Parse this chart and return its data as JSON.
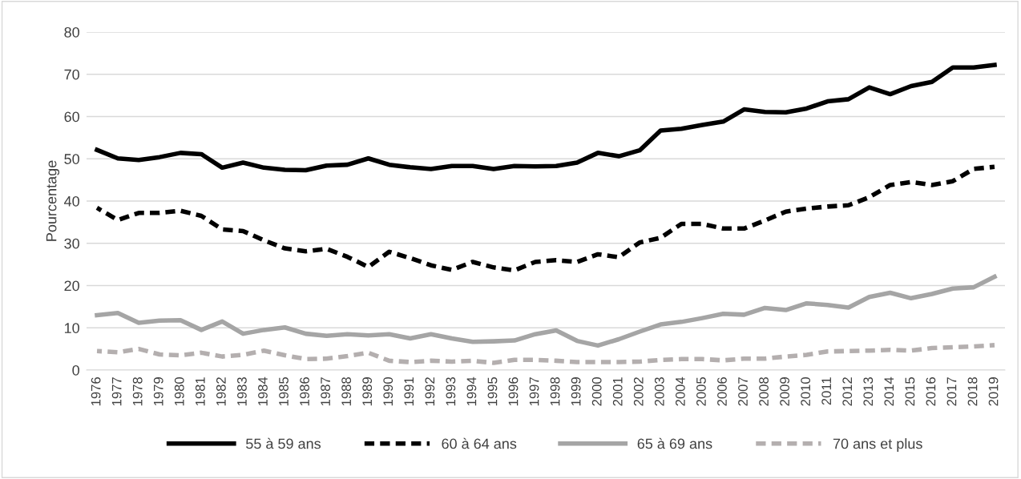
{
  "chart_data": {
    "type": "line",
    "ylabel": "Pourcentage",
    "categories": [
      "1976",
      "1977",
      "1978",
      "1979",
      "1980",
      "1981",
      "1982",
      "1983",
      "1984",
      "1985",
      "1986",
      "1987",
      "1988",
      "1989",
      "1990",
      "1991",
      "1992",
      "1993",
      "1994",
      "1995",
      "1996",
      "1997",
      "1998",
      "1999",
      "2000",
      "2001",
      "2002",
      "2003",
      "2004",
      "2005",
      "2006",
      "2007",
      "2008",
      "2009",
      "2010",
      "2011",
      "2012",
      "2013",
      "2014",
      "2015",
      "2016",
      "2017",
      "2018",
      "2019"
    ],
    "series": [
      {
        "name": "55 à 59 ans",
        "color": "#000000",
        "line_style": "solid",
        "values": [
          52.1,
          50.1,
          49.7,
          50.4,
          51.4,
          51.1,
          47.9,
          49.1,
          47.9,
          47.4,
          47.3,
          48.4,
          48.6,
          50.1,
          48.6,
          48.0,
          47.6,
          48.3,
          48.3,
          47.6,
          48.3,
          48.2,
          48.3,
          49.1,
          51.4,
          50.6,
          52.0,
          56.7,
          57.1,
          58.0,
          58.8,
          61.7,
          61.1,
          61.0,
          61.9,
          63.6,
          64.1,
          66.9,
          65.3,
          67.2,
          68.2,
          71.6,
          71.6,
          72.2
        ]
      },
      {
        "name": "60 à 64 ans",
        "color": "#000000",
        "line_style": "dashed",
        "values": [
          38.4,
          35.5,
          37.2,
          37.2,
          37.7,
          36.5,
          33.3,
          32.9,
          30.7,
          28.8,
          28.1,
          28.7,
          26.8,
          24.4,
          28.0,
          26.5,
          24.8,
          23.7,
          25.6,
          24.3,
          23.6,
          25.6,
          26.0,
          25.6,
          27.4,
          26.7,
          30.2,
          31.3,
          34.6,
          34.6,
          33.5,
          33.5,
          35.4,
          37.5,
          38.2,
          38.7,
          39.0,
          40.9,
          43.8,
          44.5,
          43.8,
          44.7,
          47.6,
          48.1
        ]
      },
      {
        "name": "65 à 69 ans",
        "color": "#a5a5a5",
        "line_style": "solid",
        "values": [
          13.0,
          13.5,
          11.2,
          11.7,
          11.8,
          9.5,
          11.5,
          8.6,
          9.5,
          10.1,
          8.6,
          8.1,
          8.5,
          8.2,
          8.5,
          7.5,
          8.5,
          7.5,
          6.7,
          6.8,
          7.0,
          8.5,
          9.4,
          6.9,
          5.8,
          7.3,
          9.1,
          10.8,
          11.4,
          12.3,
          13.3,
          13.1,
          14.7,
          14.2,
          15.8,
          15.4,
          14.8,
          17.3,
          18.3,
          17.0,
          18.0,
          19.3,
          19.6,
          22.1
        ]
      },
      {
        "name": "70 ans et plus",
        "color": "#b4afaf",
        "line_style": "dashed",
        "values": [
          4.5,
          4.2,
          5.0,
          3.7,
          3.5,
          4.1,
          3.2,
          3.6,
          4.6,
          3.5,
          2.6,
          2.7,
          3.3,
          4.1,
          2.2,
          1.9,
          2.2,
          2.0,
          2.2,
          1.7,
          2.4,
          2.4,
          2.2,
          1.9,
          1.9,
          1.9,
          2.0,
          2.4,
          2.6,
          2.6,
          2.3,
          2.7,
          2.7,
          3.2,
          3.6,
          4.4,
          4.5,
          4.6,
          4.8,
          4.6,
          5.2,
          5.4,
          5.6,
          5.9
        ]
      }
    ],
    "ylim": [
      0,
      80
    ],
    "yticks": [
      0,
      10,
      20,
      30,
      40,
      50,
      60,
      70,
      80
    ],
    "grid": "y",
    "legend": "bottom",
    "marker": "none"
  }
}
